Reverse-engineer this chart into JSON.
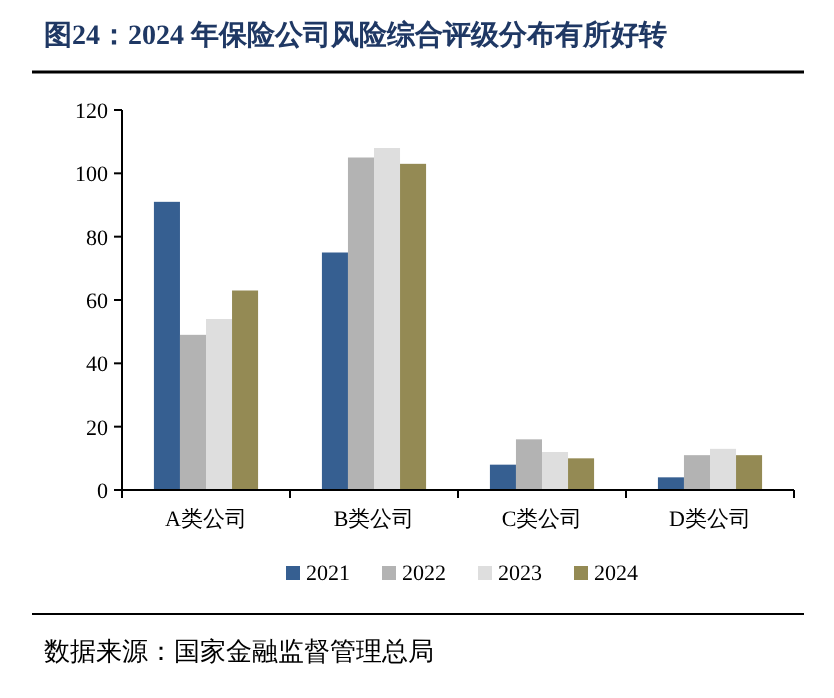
{
  "chart_data": {
    "type": "bar",
    "title": "图24：2024 年保险公司风险综合评级分布有所好转",
    "categories": [
      "A类公司",
      "B类公司",
      "C类公司",
      "D类公司"
    ],
    "series": [
      {
        "name": "2021",
        "color": "#365f91",
        "values": [
          91,
          75,
          8,
          4
        ]
      },
      {
        "name": "2022",
        "color": "#b3b3b3",
        "values": [
          49,
          105,
          16,
          11
        ]
      },
      {
        "name": "2023",
        "color": "#dedede",
        "values": [
          54,
          108,
          12,
          13
        ]
      },
      {
        "name": "2024",
        "color": "#948a54",
        "values": [
          63,
          103,
          10,
          11
        ]
      }
    ],
    "ylim": [
      0,
      120
    ],
    "yticks": [
      0,
      20,
      40,
      60,
      80,
      100,
      120
    ],
    "grid": false,
    "legend": "bottom",
    "annotations": [
      "数据来源：国家金融监督管理总局"
    ]
  }
}
